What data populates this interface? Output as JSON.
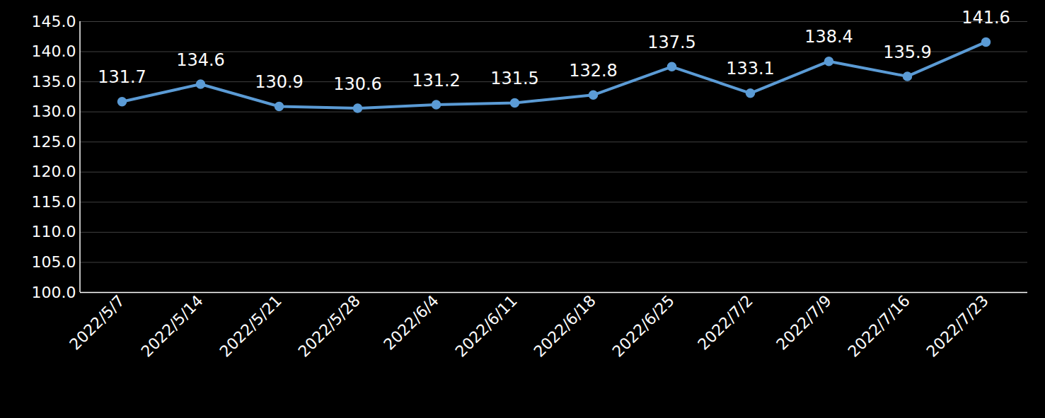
{
  "chart_data": {
    "type": "line",
    "categories": [
      "2022/5/7",
      "2022/5/14",
      "2022/5/21",
      "2022/5/28",
      "2022/6/4",
      "2022/6/11",
      "2022/6/18",
      "2022/6/25",
      "2022/7/2",
      "2022/7/9",
      "2022/7/16",
      "2022/7/23"
    ],
    "values": [
      131.7,
      134.6,
      130.9,
      130.6,
      131.2,
      131.5,
      132.8,
      137.5,
      133.1,
      138.4,
      135.9,
      141.6
    ],
    "color": "#5b9bd5",
    "marker": "circle",
    "ylim": [
      100,
      145
    ],
    "yticks": [
      {
        "value": 100,
        "label": "100.0"
      },
      {
        "value": 105,
        "label": "105.0"
      },
      {
        "value": 110,
        "label": "110.0"
      },
      {
        "value": 115,
        "label": "115.0"
      },
      {
        "value": 120,
        "label": "120.0"
      },
      {
        "value": 125,
        "label": "125.0"
      },
      {
        "value": 130,
        "label": "130.0"
      },
      {
        "value": 135,
        "label": "135.0"
      },
      {
        "value": 140,
        "label": "140.0"
      },
      {
        "value": 145,
        "label": "145.0"
      }
    ],
    "grid": true,
    "data_labels": true
  }
}
